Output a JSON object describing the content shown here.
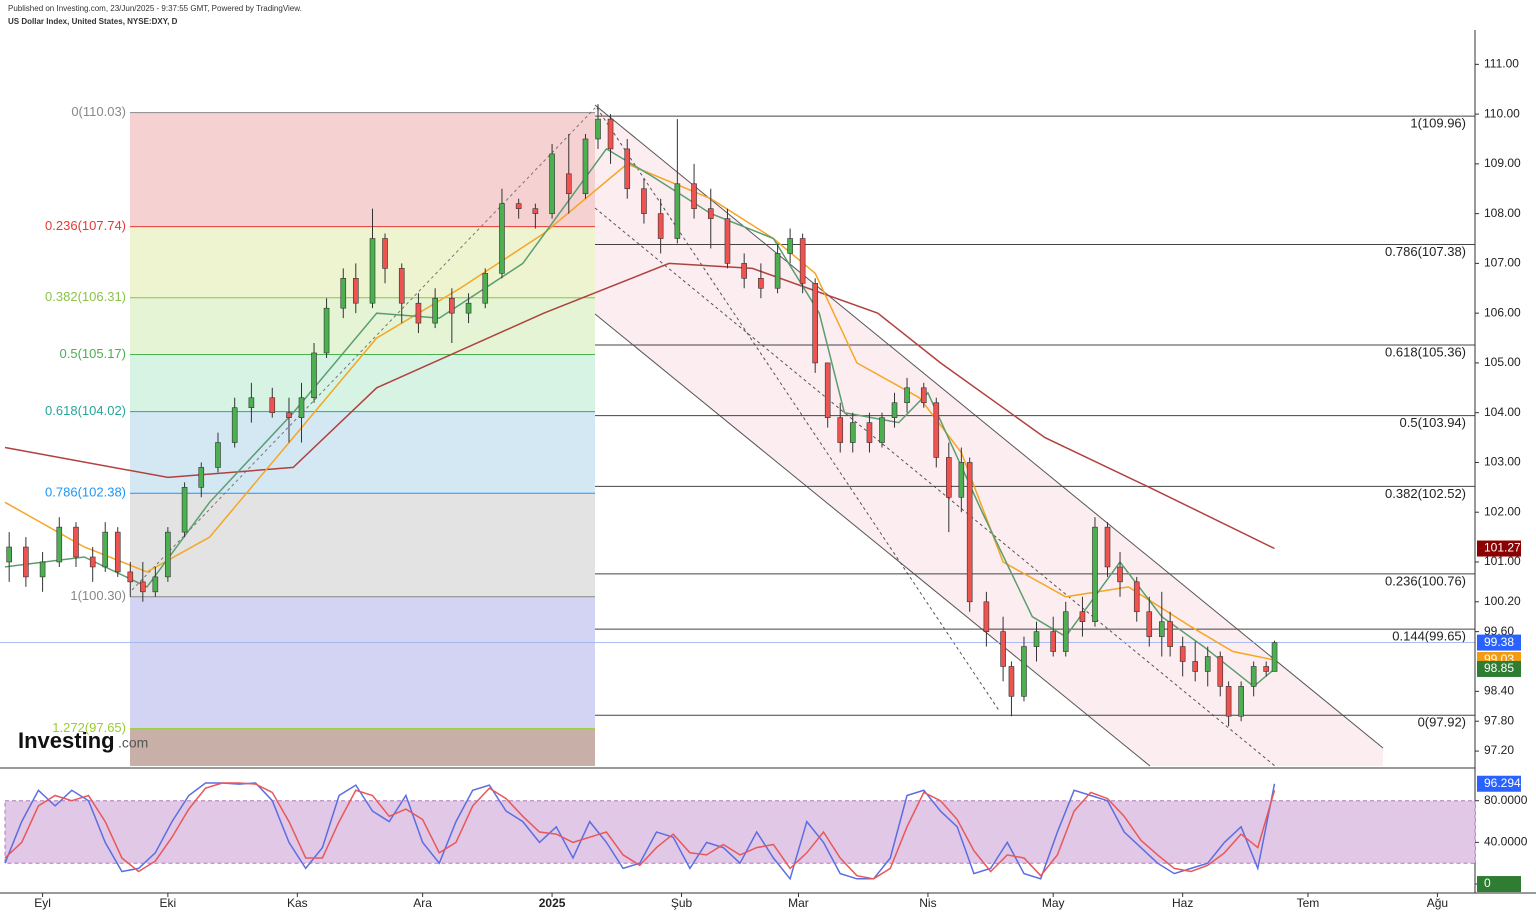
{
  "header": {
    "published": "Published on Investing.com, 23/Jun/2025 - 9:37:55 GMT, Powered by TradingView.",
    "symbol": "US Dollar Index, United States, NYSE:DXY, D"
  },
  "logo": {
    "name": "Investing",
    "suffix": ".com"
  },
  "chart_data": [
    {
      "type": "candlestick",
      "xlim": [
        -9,
        343
      ],
      "ylim": [
        96.9,
        111.69
      ],
      "xticks": [
        {
          "value": 0,
          "label": "Eyl"
        },
        {
          "value": 30,
          "label": "Eki"
        },
        {
          "value": 61,
          "label": "Kas"
        },
        {
          "value": 91,
          "label": "Ara"
        },
        {
          "value": 122,
          "label": "2025"
        },
        {
          "value": 153,
          "label": "Şub"
        },
        {
          "value": 181,
          "label": "Mar"
        },
        {
          "value": 212,
          "label": "Nis"
        },
        {
          "value": 242,
          "label": "May"
        },
        {
          "value": 273,
          "label": "Haz"
        },
        {
          "value": 303,
          "label": "Tem"
        },
        {
          "value": 334,
          "label": "Ağu"
        }
      ],
      "yticks": [
        {
          "value": 111,
          "label": "111.00"
        },
        {
          "value": 110,
          "label": "110.00"
        },
        {
          "value": 109,
          "label": "109.00"
        },
        {
          "value": 108,
          "label": "108.00"
        },
        {
          "value": 107,
          "label": "107.00"
        },
        {
          "value": 106,
          "label": "106.00"
        },
        {
          "value": 105,
          "label": "105.00"
        },
        {
          "value": 104,
          "label": "104.00"
        },
        {
          "value": 103,
          "label": "103.00"
        },
        {
          "value": 102,
          "label": "102.00"
        },
        {
          "value": 101,
          "label": "101.00"
        },
        {
          "value": 100.2,
          "label": "100.20"
        },
        {
          "value": 99.6,
          "label": "99.60"
        },
        {
          "value": 98.4,
          "label": "98.40"
        },
        {
          "value": 97.8,
          "label": "97.80"
        },
        {
          "value": 97.2,
          "label": "97.20"
        }
      ],
      "up_color": "#4caf50",
      "down_color": "#ef5350",
      "candles": {
        "x": [
          -8,
          -4,
          0,
          4,
          8,
          12,
          15,
          18,
          21,
          24,
          27,
          30,
          34,
          38,
          42,
          46,
          50,
          55,
          59,
          62,
          65,
          68,
          72,
          75,
          79,
          82,
          86,
          90,
          94,
          98,
          102,
          106,
          110,
          114,
          118,
          122,
          126,
          130,
          133,
          136,
          140,
          144,
          148,
          152,
          156,
          160,
          164,
          168,
          172,
          176,
          179,
          182,
          185,
          188,
          191,
          194,
          198,
          201,
          204,
          207,
          211,
          214,
          217,
          220,
          222,
          226,
          230,
          232,
          235,
          238,
          242,
          245,
          249,
          252,
          255,
          258,
          262,
          265,
          268,
          270,
          273,
          276,
          279,
          282,
          284,
          287,
          290,
          293,
          295
        ],
        "open": [
          101.0,
          101.3,
          100.7,
          101.0,
          101.7,
          101.1,
          100.9,
          101.6,
          100.8,
          100.6,
          100.4,
          100.7,
          101.6,
          102.5,
          102.9,
          103.4,
          104.1,
          104.3,
          104.0,
          103.9,
          104.3,
          105.2,
          106.1,
          106.7,
          106.2,
          107.5,
          106.9,
          106.2,
          105.8,
          106.3,
          106.0,
          106.2,
          106.8,
          108.2,
          108.1,
          108.0,
          108.8,
          108.4,
          109.5,
          109.9,
          109.3,
          108.5,
          108.0,
          107.5,
          108.6,
          108.1,
          107.9,
          107.0,
          106.7,
          106.5,
          107.2,
          107.5,
          106.6,
          105.0,
          103.9,
          103.4,
          103.8,
          103.4,
          103.9,
          104.2,
          104.5,
          104.2,
          103.1,
          102.3,
          103.0,
          100.2,
          99.6,
          98.9,
          98.3,
          99.3,
          99.6,
          99.2,
          100.0,
          99.8,
          101.7,
          100.9,
          100.6,
          100.0,
          99.5,
          99.8,
          99.3,
          99.0,
          98.8,
          99.1,
          98.5,
          97.9,
          98.5,
          98.9,
          98.8
        ],
        "high": [
          101.6,
          101.5,
          101.2,
          101.9,
          101.8,
          101.3,
          101.8,
          101.7,
          101.0,
          101.0,
          100.9,
          101.7,
          102.6,
          103.0,
          103.6,
          104.3,
          104.6,
          104.5,
          104.3,
          104.6,
          105.4,
          106.3,
          106.9,
          107.0,
          108.1,
          107.6,
          107.0,
          106.4,
          106.5,
          106.5,
          106.4,
          106.9,
          108.5,
          108.3,
          108.2,
          109.4,
          109.6,
          109.6,
          110.2,
          110.0,
          109.5,
          108.7,
          108.3,
          109.9,
          109.0,
          108.5,
          108.1,
          107.2,
          107.0,
          107.4,
          107.7,
          107.6,
          106.7,
          105.0,
          104.2,
          104.0,
          104.0,
          104.0,
          104.4,
          104.7,
          104.6,
          104.3,
          103.4,
          103.3,
          103.1,
          100.4,
          99.9,
          99.0,
          99.5,
          99.8,
          99.9,
          100.2,
          100.3,
          101.9,
          101.8,
          101.2,
          100.7,
          100.3,
          100.4,
          100.0,
          99.5,
          99.4,
          99.3,
          99.2,
          98.6,
          98.6,
          99.0,
          99.0,
          99.42
        ],
        "low": [
          100.6,
          100.5,
          100.4,
          100.9,
          100.9,
          100.6,
          100.8,
          100.7,
          100.3,
          100.2,
          100.3,
          100.6,
          101.5,
          102.3,
          102.8,
          103.3,
          103.8,
          103.9,
          103.4,
          103.4,
          104.2,
          105.1,
          105.9,
          106.0,
          106.1,
          106.6,
          105.8,
          105.6,
          105.7,
          105.4,
          105.8,
          106.1,
          106.7,
          107.9,
          107.7,
          107.9,
          108.0,
          108.3,
          109.3,
          109.0,
          108.3,
          107.8,
          107.2,
          107.4,
          107.9,
          107.3,
          106.9,
          106.5,
          106.3,
          106.4,
          107.0,
          106.4,
          104.8,
          103.7,
          103.2,
          103.2,
          103.2,
          103.3,
          103.7,
          104.0,
          104.1,
          102.9,
          101.6,
          102.0,
          100.0,
          99.3,
          98.6,
          97.9,
          98.2,
          99.0,
          99.1,
          99.1,
          99.5,
          99.7,
          100.7,
          100.3,
          99.8,
          99.3,
          99.1,
          99.1,
          98.7,
          98.6,
          98.5,
          98.3,
          97.7,
          97.8,
          98.3,
          98.7,
          98.8
        ],
        "close": [
          101.3,
          100.7,
          101.0,
          101.7,
          101.1,
          100.9,
          101.6,
          100.8,
          100.6,
          100.4,
          100.7,
          101.6,
          102.5,
          102.9,
          103.4,
          104.1,
          104.3,
          104.0,
          103.9,
          104.3,
          105.2,
          106.1,
          106.7,
          106.2,
          107.5,
          106.9,
          106.2,
          105.8,
          106.3,
          106.0,
          106.2,
          106.8,
          108.2,
          108.1,
          108.0,
          109.2,
          108.4,
          109.5,
          109.9,
          109.3,
          108.5,
          108.0,
          107.5,
          108.6,
          108.1,
          107.9,
          107.0,
          106.7,
          106.5,
          107.2,
          107.5,
          106.6,
          105.0,
          103.9,
          103.4,
          103.8,
          103.4,
          103.9,
          104.2,
          104.5,
          104.2,
          103.1,
          102.3,
          103.0,
          100.2,
          99.6,
          98.9,
          98.3,
          99.3,
          99.6,
          99.2,
          100.0,
          99.8,
          101.7,
          100.9,
          100.6,
          100.0,
          99.5,
          99.8,
          99.3,
          99.0,
          98.8,
          99.1,
          98.5,
          97.9,
          98.5,
          98.9,
          98.8,
          99.38
        ]
      },
      "series": [
        {
          "color": "#b0413e",
          "x": [
            -9,
            30,
            60,
            80,
            120,
            150,
            170,
            200,
            215,
            240,
            265,
            295
          ],
          "values": [
            103.3,
            102.7,
            102.9,
            104.5,
            106.0,
            107.0,
            106.9,
            106.0,
            105.0,
            103.5,
            102.5,
            101.27
          ]
        },
        {
          "color": "#f5a623",
          "x": [
            -9,
            10,
            25,
            40,
            60,
            80,
            100,
            120,
            140,
            160,
            175,
            185,
            195,
            210,
            220,
            230,
            245,
            260,
            275,
            285,
            295
          ],
          "values": [
            102.2,
            101.3,
            100.8,
            101.5,
            103.5,
            105.5,
            106.5,
            107.6,
            109.0,
            108.3,
            107.5,
            106.8,
            105.0,
            104.3,
            103.2,
            101.0,
            100.3,
            100.5,
            99.7,
            99.2,
            99.03
          ]
        },
        {
          "color": "#5a9e6f",
          "x": [
            -9,
            10,
            25,
            40,
            60,
            80,
            95,
            115,
            135,
            145,
            160,
            175,
            186,
            192,
            205,
            212,
            225,
            237,
            245,
            258,
            268,
            278,
            290,
            295
          ],
          "values": [
            100.9,
            101.1,
            100.5,
            102.2,
            104.0,
            106.0,
            105.9,
            107.0,
            109.3,
            108.8,
            108.0,
            107.5,
            106.0,
            104.0,
            103.8,
            104.4,
            102.0,
            99.9,
            99.5,
            101.0,
            99.9,
            99.3,
            98.5,
            98.85
          ]
        }
      ],
      "fib_left": [
        {
          "value": 110.03,
          "label": "0(110.03)",
          "color": "#888888"
        },
        {
          "value": 107.74,
          "label": "0.236(107.74)",
          "color": "#e53935"
        },
        {
          "value": 106.31,
          "label": "0.382(106.31)",
          "color": "#8bc34a"
        },
        {
          "value": 105.17,
          "label": "0.5(105.17)",
          "color": "#4caf50"
        },
        {
          "value": 104.02,
          "label": "0.618(104.02)",
          "color": "#26a69a"
        },
        {
          "value": 102.38,
          "label": "0.786(102.38)",
          "color": "#2196f3"
        },
        {
          "value": 100.3,
          "label": "1(100.30)",
          "color": "#888888"
        },
        {
          "value": 97.65,
          "label": "1.272(97.65)",
          "color": "#9acd32"
        }
      ],
      "fib_right": [
        {
          "value": 109.96,
          "label": "1(109.96)"
        },
        {
          "value": 107.38,
          "label": "0.786(107.38)"
        },
        {
          "value": 105.36,
          "label": "0.618(105.36)"
        },
        {
          "value": 103.94,
          "label": "0.5(103.94)"
        },
        {
          "value": 102.52,
          "label": "0.382(102.52)"
        },
        {
          "value": 100.76,
          "label": "0.236(100.76)"
        },
        {
          "value": 99.65,
          "label": "0.144(99.65)"
        },
        {
          "value": 97.92,
          "label": "0(97.92)"
        }
      ],
      "badges": [
        {
          "value": 101.27,
          "color": "#8b0000"
        },
        {
          "value": 99.38,
          "color": "#2962ff"
        },
        {
          "value": 99.03,
          "color": "#f39c12"
        },
        {
          "value": 98.85,
          "color": "#2e7d32"
        }
      ]
    },
    {
      "type": "line",
      "ylim": [
        -8.6,
        109.5
      ],
      "yticks": [
        {
          "value": 80,
          "label": "80.0000"
        },
        {
          "value": 40,
          "label": "40.0000"
        },
        {
          "value": 0,
          "label": "0.0000"
        }
      ],
      "band": [
        20,
        80
      ],
      "x": [
        -9,
        -5,
        -1,
        3,
        7,
        11,
        15,
        19,
        23,
        27,
        31,
        35,
        39,
        43,
        47,
        51,
        55,
        59,
        63,
        67,
        71,
        75,
        79,
        83,
        87,
        91,
        95,
        99,
        103,
        107,
        111,
        115,
        119,
        123,
        127,
        131,
        135,
        139,
        143,
        147,
        151,
        155,
        159,
        163,
        167,
        171,
        175,
        179,
        183,
        187,
        191,
        195,
        199,
        203,
        207,
        211,
        215,
        219,
        223,
        227,
        231,
        235,
        239,
        243,
        247,
        251,
        255,
        259,
        263,
        267,
        271,
        275,
        279,
        283,
        287,
        291,
        295
      ],
      "series": [
        {
          "color": "#5b6ee1",
          "values": [
            20,
            60,
            90,
            75,
            90,
            80,
            40,
            12,
            15,
            30,
            60,
            85,
            97,
            97,
            96,
            97,
            80,
            40,
            15,
            35,
            85,
            95,
            70,
            60,
            85,
            40,
            20,
            60,
            90,
            95,
            70,
            60,
            40,
            55,
            25,
            60,
            40,
            15,
            20,
            50,
            45,
            15,
            40,
            35,
            20,
            50,
            25,
            5,
            60,
            40,
            10,
            5,
            5,
            25,
            85,
            90,
            70,
            55,
            10,
            15,
            40,
            10,
            5,
            50,
            90,
            85,
            80,
            50,
            35,
            20,
            10,
            15,
            20,
            40,
            55,
            15,
            96.2944
          ]
        },
        {
          "color": "#e8575a",
          "values": [
            25,
            40,
            75,
            85,
            80,
            85,
            60,
            25,
            12,
            22,
            45,
            72,
            92,
            97,
            97,
            96,
            88,
            60,
            25,
            25,
            60,
            90,
            85,
            65,
            72,
            62,
            30,
            40,
            75,
            92,
            82,
            65,
            50,
            48,
            40,
            45,
            50,
            28,
            18,
            35,
            48,
            30,
            28,
            38,
            28,
            35,
            38,
            15,
            30,
            50,
            25,
            8,
            5,
            15,
            55,
            88,
            80,
            62,
            32,
            12,
            28,
            25,
            8,
            28,
            70,
            88,
            82,
            65,
            42,
            28,
            15,
            12,
            18,
            30,
            48,
            35,
            90
          ]
        }
      ],
      "badges": [
        {
          "value": 96.2944,
          "color": "#2962ff"
        },
        {
          "value": 0,
          "color": "#2e7d32"
        }
      ]
    }
  ]
}
